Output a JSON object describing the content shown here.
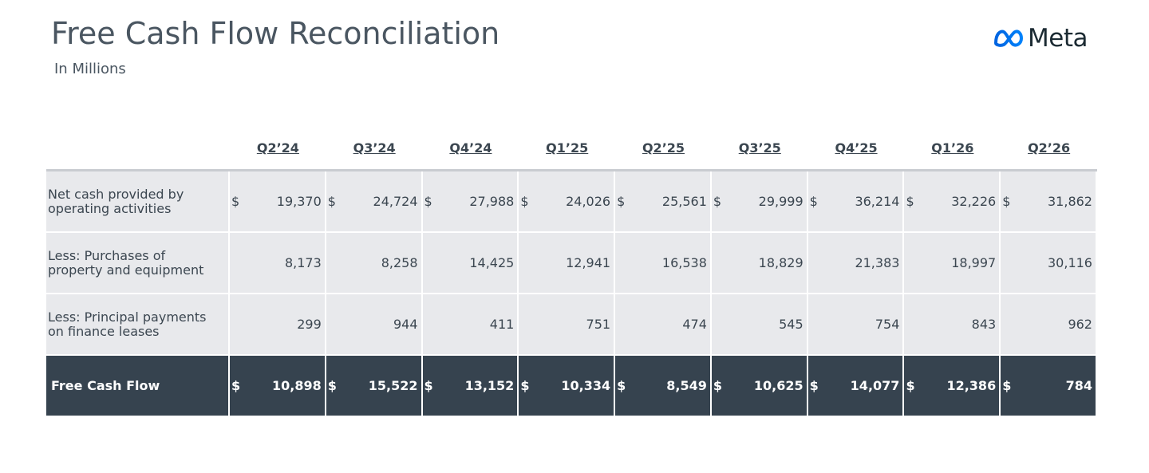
{
  "header": {
    "title": "Free Cash Flow Reconciliation",
    "subtitle": "In Millions",
    "logo": "Meta"
  },
  "table": {
    "columns": [
      "Q2’24",
      "Q3’24",
      "Q4’24",
      "Q1’25",
      "Q2’25",
      "Q3’25",
      "Q4’25",
      "Q1’26",
      "Q2’26"
    ],
    "rows": [
      {
        "label": "Net cash provided by operating activities",
        "cells": [
          {
            "currency": "$",
            "amount": "19,370"
          },
          {
            "currency": "$",
            "amount": "24,724"
          },
          {
            "currency": "$",
            "amount": "27,988"
          },
          {
            "currency": "$",
            "amount": "24,026"
          },
          {
            "currency": "$",
            "amount": "25,561"
          },
          {
            "currency": "$",
            "amount": "29,999"
          },
          {
            "currency": "$",
            "amount": "36,214"
          },
          {
            "currency": "$",
            "amount": "32,226"
          },
          {
            "currency": "$",
            "amount": "31,862"
          }
        ]
      },
      {
        "label": "Less: Purchases of property and equipment",
        "cells": [
          {
            "amount": "8,173"
          },
          {
            "amount": "8,258"
          },
          {
            "amount": "14,425"
          },
          {
            "amount": "12,941"
          },
          {
            "amount": "16,538"
          },
          {
            "amount": "18,829"
          },
          {
            "amount": "21,383"
          },
          {
            "amount": "18,997"
          },
          {
            "amount": "30,116"
          }
        ]
      },
      {
        "label": "Less: Principal payments on finance leases",
        "cells": [
          {
            "amount": "299"
          },
          {
            "amount": "944"
          },
          {
            "amount": "411"
          },
          {
            "amount": "751"
          },
          {
            "amount": "474"
          },
          {
            "amount": "545"
          },
          {
            "amount": "754"
          },
          {
            "amount": "843"
          },
          {
            "amount": "962"
          }
        ]
      },
      {
        "label": "Free Cash Flow",
        "total": true,
        "cells": [
          {
            "currency": "$",
            "amount": "10,898"
          },
          {
            "currency": "$",
            "amount": "15,522"
          },
          {
            "currency": "$",
            "amount": "13,152"
          },
          {
            "currency": "$",
            "amount": "10,334"
          },
          {
            "currency": "$",
            "amount": "8,549"
          },
          {
            "currency": "$",
            "amount": "10,625"
          },
          {
            "currency": "$",
            "amount": "14,077"
          },
          {
            "currency": "$",
            "amount": "12,386"
          },
          {
            "currency": "$",
            "amount": "784"
          }
        ]
      }
    ]
  }
}
